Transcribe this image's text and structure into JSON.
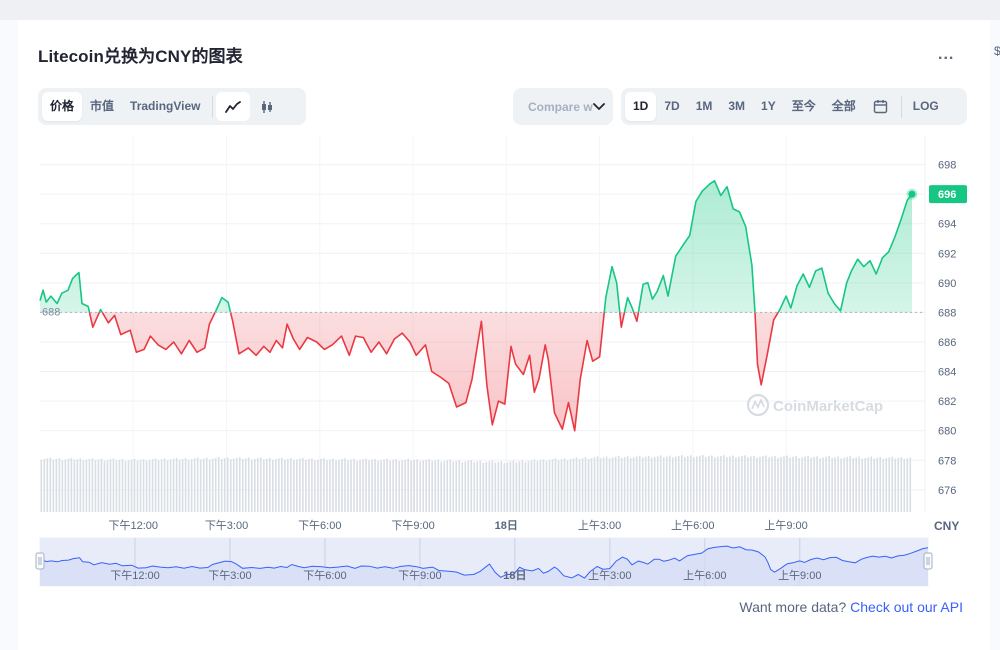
{
  "title": "Litecoin兑换为CNY的图表",
  "menu_label": "...",
  "edge_glyph": "$",
  "view_tabs": [
    "价格",
    "市值",
    "TradingView"
  ],
  "chart_mode_icons": [
    "line-chart-icon",
    "candlestick-icon"
  ],
  "compare": {
    "placeholder": "Compare with"
  },
  "ranges": [
    "1D",
    "7D",
    "1M",
    "3M",
    "1Y",
    "至今",
    "全部"
  ],
  "active_range": "1D",
  "log_label": "LOG",
  "footer": {
    "text": "Want more data?",
    "link": "Check out our API"
  },
  "watermark": "CoinMarketCap",
  "colors": {
    "up": "#16c784",
    "down": "#ea3943",
    "current_badge": "#16c784",
    "navigator": "#e4e9f8",
    "navigator_line": "#3861fb"
  },
  "chart_data": {
    "type": "area",
    "title": "",
    "currency_label": "CNY",
    "baseline": 688,
    "baseline_label": "688",
    "current_value": 696,
    "current_label": "696",
    "ylim": [
      674.5,
      700
    ],
    "y_ticks": [
      "698",
      "696",
      "694",
      "692",
      "690",
      "688",
      "686",
      "684",
      "682",
      "680",
      "678",
      "676"
    ],
    "y_tick_values": [
      698,
      696,
      694,
      692,
      690,
      688,
      686,
      684,
      682,
      680,
      678,
      676
    ],
    "x_tick_labels": [
      "下午12:00",
      "下午3:00",
      "下午6:00",
      "下午9:00",
      "18日",
      "上午3:00",
      "上午6:00",
      "上午9:00"
    ],
    "x_tick_hours": [
      3,
      6,
      9,
      12,
      15,
      18,
      21,
      24
    ],
    "x_range_hours": [
      0,
      23.75
    ],
    "price_keypoints": [
      [
        0.0,
        688.8
      ],
      [
        0.1,
        689.5
      ],
      [
        0.2,
        688.7
      ],
      [
        0.35,
        689.1
      ],
      [
        0.55,
        688.6
      ],
      [
        0.7,
        689.3
      ],
      [
        0.9,
        689.5
      ],
      [
        1.05,
        690.3
      ],
      [
        1.25,
        690.7
      ],
      [
        1.35,
        688.6
      ],
      [
        1.55,
        688.4
      ],
      [
        1.7,
        687.0
      ],
      [
        1.95,
        688.2
      ],
      [
        2.2,
        687.3
      ],
      [
        2.4,
        687.8
      ],
      [
        2.6,
        686.5
      ],
      [
        2.9,
        686.8
      ],
      [
        3.1,
        685.3
      ],
      [
        3.35,
        685.5
      ],
      [
        3.55,
        686.4
      ],
      [
        3.8,
        685.8
      ],
      [
        4.05,
        685.5
      ],
      [
        4.3,
        686.0
      ],
      [
        4.55,
        685.2
      ],
      [
        4.8,
        686.1
      ],
      [
        5.05,
        685.3
      ],
      [
        5.3,
        685.6
      ],
      [
        5.45,
        687.2
      ],
      [
        5.7,
        688.3
      ],
      [
        5.85,
        689.0
      ],
      [
        6.05,
        688.7
      ],
      [
        6.2,
        687.4
      ],
      [
        6.4,
        685.2
      ],
      [
        6.7,
        685.6
      ],
      [
        6.95,
        685.1
      ],
      [
        7.2,
        685.7
      ],
      [
        7.4,
        685.3
      ],
      [
        7.6,
        686.1
      ],
      [
        7.8,
        685.6
      ],
      [
        7.95,
        687.2
      ],
      [
        8.15,
        686.2
      ],
      [
        8.35,
        685.5
      ],
      [
        8.6,
        686.3
      ],
      [
        8.9,
        686.0
      ],
      [
        9.15,
        685.5
      ],
      [
        9.4,
        685.8
      ],
      [
        9.7,
        686.4
      ],
      [
        9.95,
        685.1
      ],
      [
        10.15,
        686.4
      ],
      [
        10.4,
        686.3
      ],
      [
        10.65,
        685.3
      ],
      [
        10.9,
        686.0
      ],
      [
        11.15,
        685.2
      ],
      [
        11.4,
        686.2
      ],
      [
        11.65,
        686.6
      ],
      [
        11.9,
        686.0
      ],
      [
        12.1,
        685.1
      ],
      [
        12.4,
        685.8
      ],
      [
        12.6,
        684.0
      ],
      [
        12.9,
        683.6
      ],
      [
        13.15,
        683.2
      ],
      [
        13.4,
        681.6
      ],
      [
        13.7,
        681.9
      ],
      [
        13.9,
        683.5
      ],
      [
        14.05,
        685.5
      ],
      [
        14.2,
        687.4
      ],
      [
        14.38,
        683.0
      ],
      [
        14.55,
        680.4
      ],
      [
        14.75,
        682.0
      ],
      [
        14.95,
        681.8
      ],
      [
        15.15,
        685.7
      ],
      [
        15.3,
        684.5
      ],
      [
        15.55,
        683.8
      ],
      [
        15.75,
        685.1
      ],
      [
        15.9,
        682.6
      ],
      [
        16.05,
        683.5
      ],
      [
        16.25,
        685.8
      ],
      [
        16.35,
        684.8
      ],
      [
        16.55,
        681.2
      ],
      [
        16.8,
        680.1
      ],
      [
        17.0,
        681.9
      ],
      [
        17.2,
        680.0
      ],
      [
        17.38,
        683.5
      ],
      [
        17.6,
        686.1
      ],
      [
        17.78,
        684.7
      ],
      [
        18.0,
        685.0
      ],
      [
        18.2,
        689.0
      ],
      [
        18.4,
        691.1
      ],
      [
        18.55,
        690.0
      ],
      [
        18.7,
        687.0
      ],
      [
        18.9,
        689.0
      ],
      [
        19.05,
        688.3
      ],
      [
        19.2,
        687.4
      ],
      [
        19.4,
        689.9
      ],
      [
        19.55,
        690.0
      ],
      [
        19.7,
        688.9
      ],
      [
        19.85,
        689.4
      ],
      [
        20.05,
        690.5
      ],
      [
        20.2,
        689.1
      ],
      [
        20.45,
        691.8
      ],
      [
        20.7,
        692.6
      ],
      [
        20.9,
        693.2
      ],
      [
        21.1,
        695.5
      ],
      [
        21.3,
        696.2
      ],
      [
        21.55,
        696.7
      ],
      [
        21.7,
        696.9
      ],
      [
        21.9,
        695.9
      ],
      [
        22.1,
        696.5
      ],
      [
        22.3,
        695.0
      ],
      [
        22.5,
        694.8
      ],
      [
        22.7,
        693.8
      ],
      [
        22.9,
        691.2
      ],
      [
        23.0,
        688.0
      ],
      [
        23.08,
        684.5
      ],
      [
        23.2,
        683.1
      ],
      [
        23.4,
        685.2
      ],
      [
        23.6,
        687.5
      ],
      [
        23.8,
        688.2
      ],
      [
        24.0,
        689.1
      ],
      [
        24.15,
        688.3
      ],
      [
        24.35,
        689.8
      ],
      [
        24.55,
        690.6
      ],
      [
        24.75,
        689.7
      ],
      [
        24.95,
        690.8
      ],
      [
        25.15,
        691.0
      ],
      [
        25.35,
        689.3
      ],
      [
        25.55,
        688.6
      ],
      [
        25.75,
        688.1
      ],
      [
        25.95,
        690.0
      ],
      [
        26.1,
        690.8
      ],
      [
        26.3,
        691.6
      ],
      [
        26.5,
        691.1
      ],
      [
        26.7,
        691.5
      ],
      [
        26.9,
        690.6
      ],
      [
        27.1,
        691.7
      ],
      [
        27.3,
        692.1
      ],
      [
        27.5,
        693.1
      ],
      [
        27.7,
        694.3
      ],
      [
        27.9,
        695.6
      ],
      [
        28.05,
        696.0
      ]
    ],
    "volume_keypoints": [
      [
        0,
        0.82
      ],
      [
        3,
        0.8
      ],
      [
        6,
        0.83
      ],
      [
        9,
        0.81
      ],
      [
        12,
        0.8
      ],
      [
        15,
        0.77
      ],
      [
        18,
        0.84
      ],
      [
        21,
        0.86
      ],
      [
        24,
        0.85
      ],
      [
        28.05,
        0.83
      ]
    ],
    "volume_unit": "relative"
  }
}
